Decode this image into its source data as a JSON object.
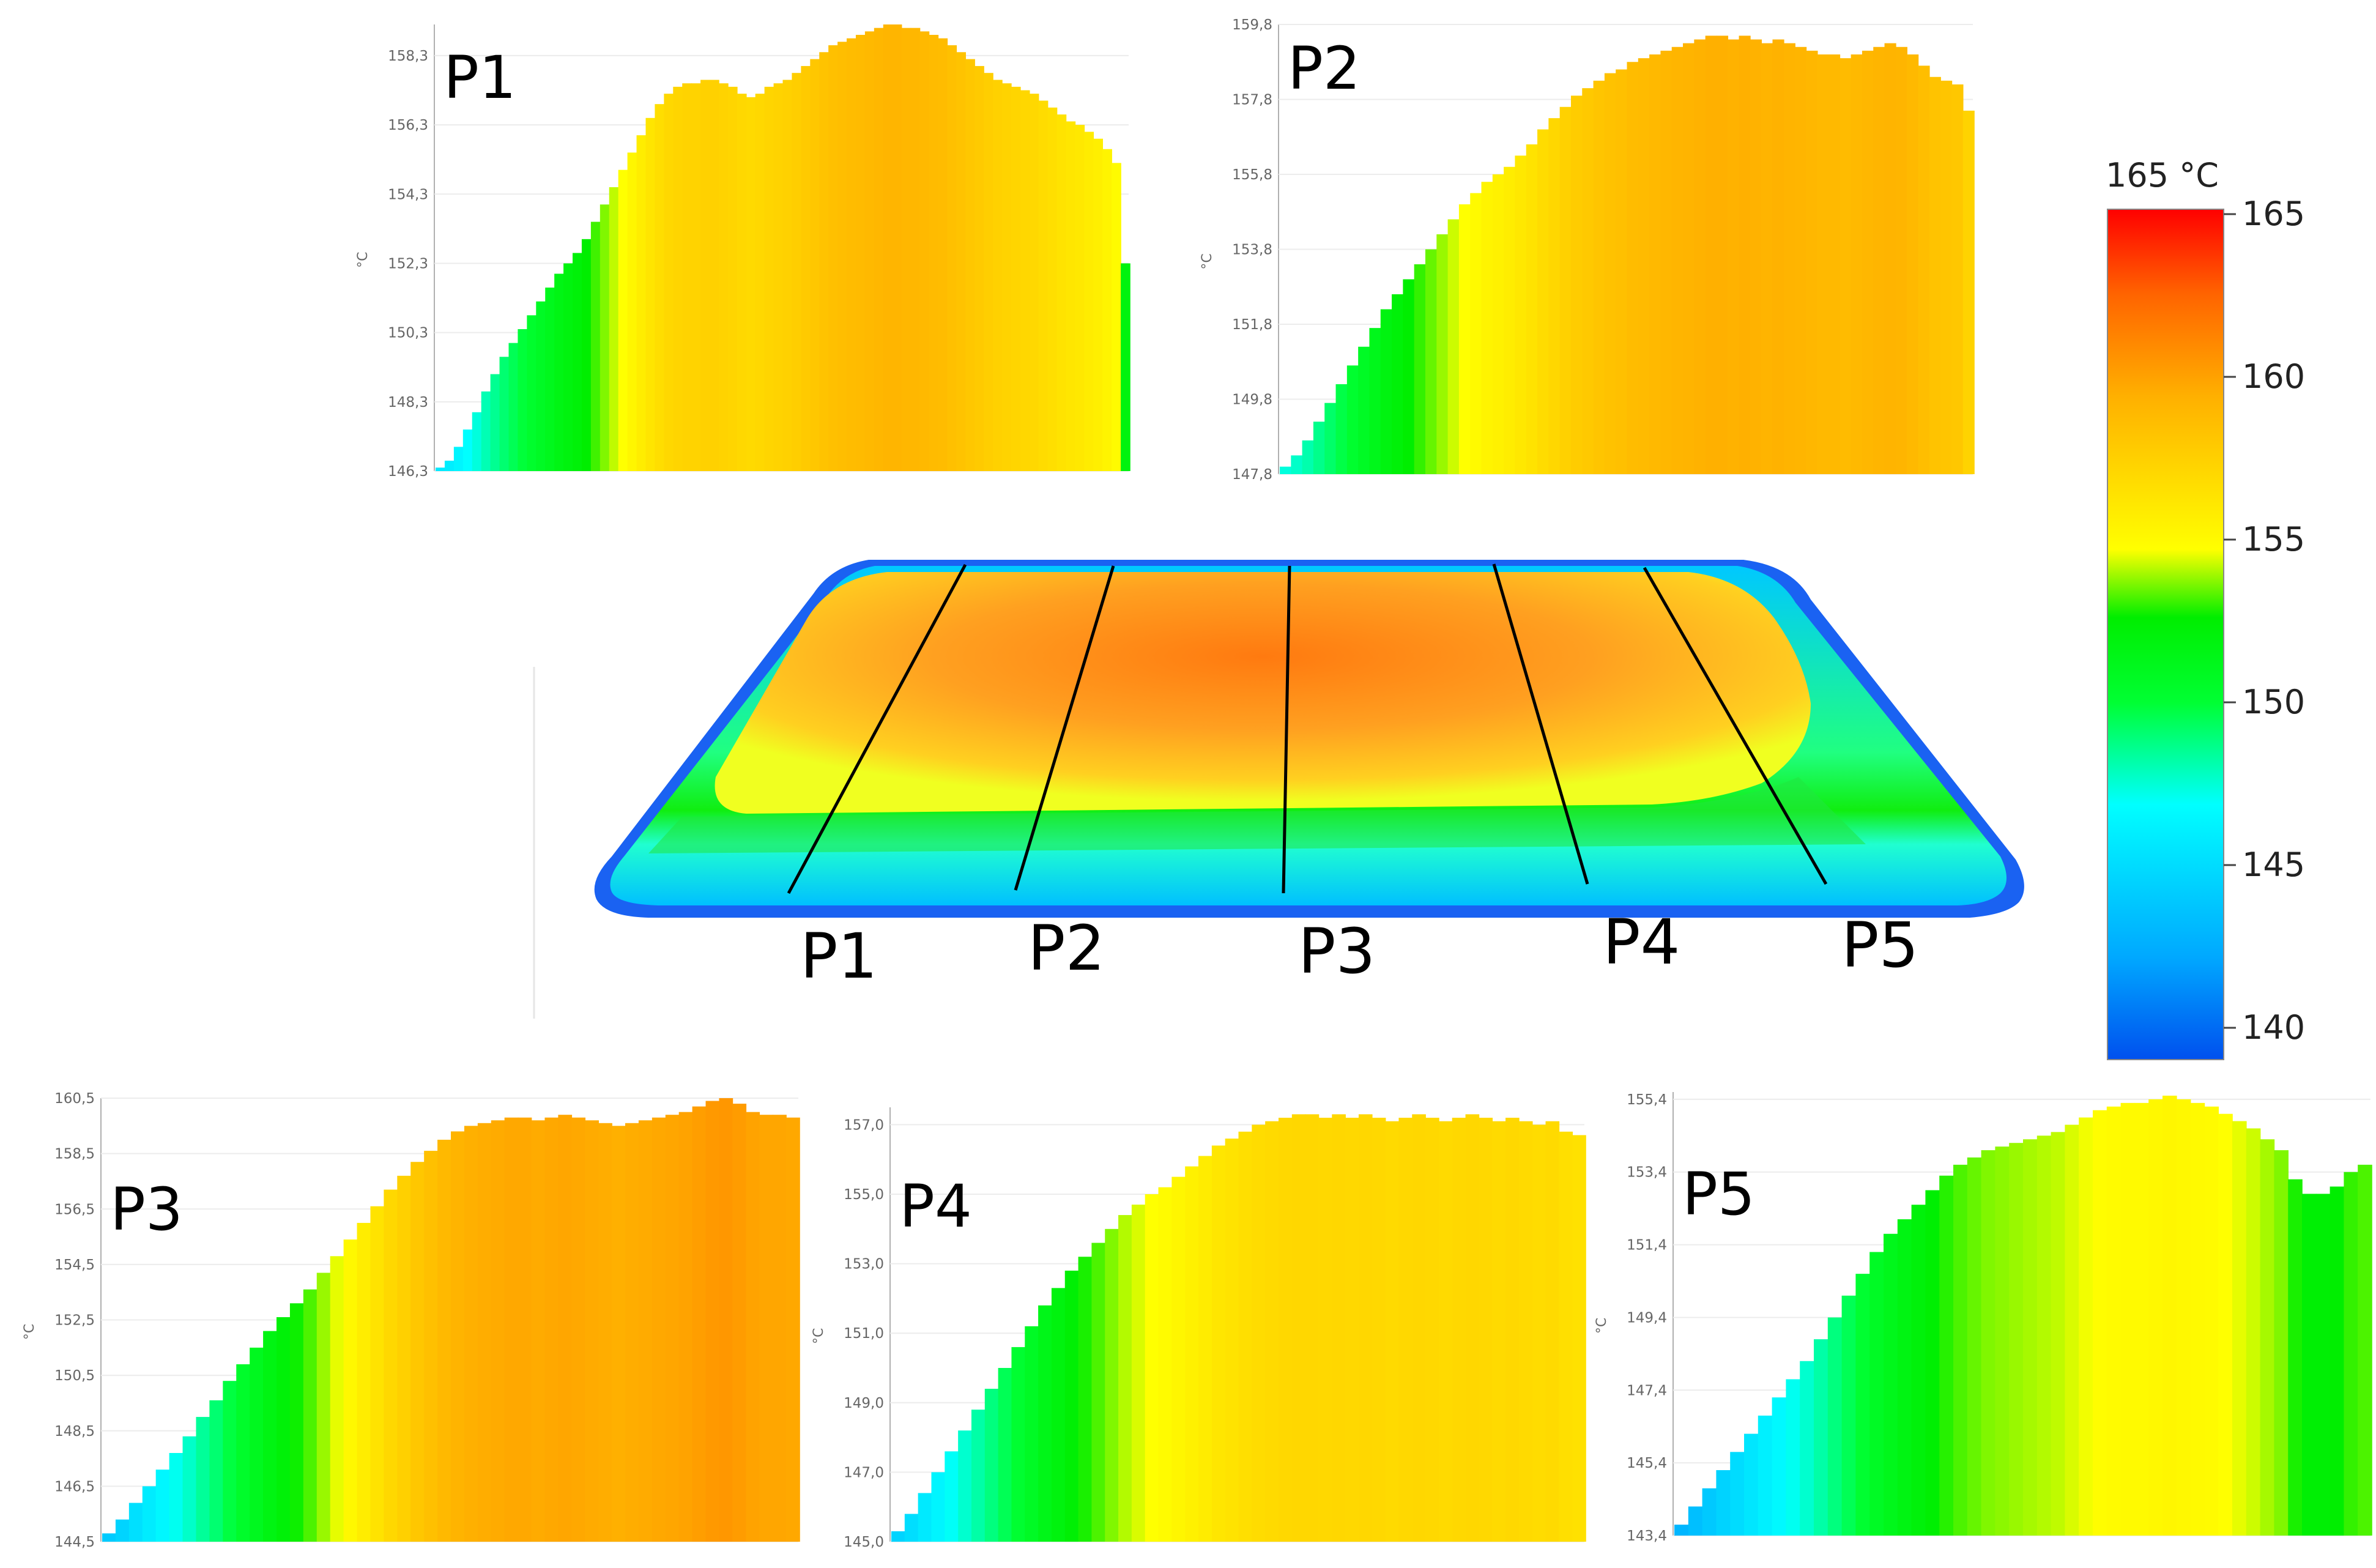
{
  "colorbar": {
    "title": "165 °C",
    "ticks": [
      "165",
      "160",
      "155",
      "150",
      "145",
      "140"
    ],
    "min": 140,
    "max": 165,
    "colors": [
      "#0044ee",
      "#00bfff",
      "#00ffff",
      "#00ff00",
      "#00dd00",
      "#ffff00",
      "#ffaa00",
      "#ff6600",
      "#ff0000"
    ]
  },
  "thermal_image": {
    "profile_labels": [
      "P1",
      "P2",
      "P3",
      "P4",
      "P5"
    ]
  },
  "chart_data": [
    {
      "type": "bar",
      "title": "P1",
      "ylabel": "°C",
      "yticks": [
        "146,3",
        "148,3",
        "150,3",
        "152,3",
        "154,3",
        "156,3",
        "158,3"
      ],
      "ylim": [
        146.3,
        159.2
      ],
      "values": [
        146.4,
        146.6,
        147.0,
        147.5,
        148.0,
        148.6,
        149.1,
        149.6,
        150.0,
        150.4,
        150.8,
        151.2,
        151.6,
        152.0,
        152.3,
        152.6,
        153.0,
        153.5,
        154.0,
        154.5,
        155.0,
        155.5,
        156.0,
        156.5,
        156.9,
        157.2,
        157.4,
        157.5,
        157.5,
        157.6,
        157.6,
        157.5,
        157.4,
        157.2,
        157.1,
        157.2,
        157.4,
        157.5,
        157.6,
        157.8,
        158.0,
        158.2,
        158.4,
        158.6,
        158.7,
        158.8,
        158.9,
        159.0,
        159.1,
        159.2,
        159.2,
        159.1,
        159.1,
        159.0,
        158.9,
        158.8,
        158.6,
        158.4,
        158.2,
        158.0,
        157.8,
        157.6,
        157.5,
        157.4,
        157.3,
        157.2,
        157.0,
        156.8,
        156.6,
        156.4,
        156.3,
        156.1,
        155.9,
        155.6,
        155.2,
        152.3
      ]
    },
    {
      "type": "bar",
      "title": "P2",
      "ylabel": "°C",
      "yticks": [
        "147,8",
        "149,8",
        "151,8",
        "153,8",
        "155,8",
        "157,8",
        "159,8"
      ],
      "ylim": [
        147.8,
        159.8
      ],
      "values": [
        148.0,
        148.3,
        148.7,
        149.2,
        149.7,
        150.2,
        150.7,
        151.2,
        151.7,
        152.2,
        152.6,
        153.0,
        153.4,
        153.8,
        154.2,
        154.6,
        155.0,
        155.3,
        155.6,
        155.8,
        156.0,
        156.3,
        156.6,
        157.0,
        157.3,
        157.6,
        157.9,
        158.1,
        158.3,
        158.5,
        158.6,
        158.8,
        158.9,
        159.0,
        159.1,
        159.2,
        159.3,
        159.4,
        159.5,
        159.5,
        159.4,
        159.5,
        159.4,
        159.3,
        159.4,
        159.3,
        159.2,
        159.1,
        159.0,
        159.0,
        158.9,
        159.0,
        159.1,
        159.2,
        159.3,
        159.2,
        159.0,
        158.7,
        158.4,
        158.3,
        158.2,
        157.5
      ]
    },
    {
      "type": "bar",
      "title": "P3",
      "ylabel": "°C",
      "yticks": [
        "144,5",
        "146,5",
        "148,5",
        "150,5",
        "152,5",
        "154,5",
        "156,5",
        "158,5",
        "160,5"
      ],
      "ylim": [
        144.5,
        160.5
      ],
      "values": [
        144.8,
        145.3,
        145.9,
        146.5,
        147.1,
        147.7,
        148.3,
        149.0,
        149.6,
        150.3,
        150.9,
        151.5,
        152.1,
        152.6,
        153.1,
        153.6,
        154.2,
        154.8,
        155.4,
        156.0,
        156.6,
        157.2,
        157.7,
        158.2,
        158.6,
        159.0,
        159.3,
        159.5,
        159.6,
        159.7,
        159.8,
        159.8,
        159.7,
        159.8,
        159.9,
        159.8,
        159.7,
        159.6,
        159.5,
        159.6,
        159.7,
        159.8,
        159.9,
        160.0,
        160.2,
        160.4,
        160.5,
        160.3,
        160.0,
        159.9,
        159.9,
        159.8
      ]
    },
    {
      "type": "bar",
      "title": "P4",
      "ylabel": "°C",
      "yticks": [
        "145,0",
        "147,0",
        "149,0",
        "151,0",
        "153,0",
        "155,0",
        "157,0"
      ],
      "ylim": [
        145.0,
        157.5
      ],
      "values": [
        145.3,
        145.8,
        146.4,
        147.0,
        147.6,
        148.2,
        148.8,
        149.4,
        150.0,
        150.6,
        151.2,
        151.8,
        152.3,
        152.8,
        153.2,
        153.6,
        154.0,
        154.4,
        154.7,
        155.0,
        155.2,
        155.5,
        155.8,
        156.1,
        156.4,
        156.6,
        156.8,
        157.0,
        157.1,
        157.2,
        157.3,
        157.3,
        157.2,
        157.3,
        157.2,
        157.3,
        157.2,
        157.1,
        157.2,
        157.3,
        157.2,
        157.1,
        157.2,
        157.3,
        157.2,
        157.1,
        157.2,
        157.1,
        157.0,
        157.1,
        156.8,
        156.7
      ]
    },
    {
      "type": "bar",
      "title": "P5",
      "ylabel": "°C",
      "yticks": [
        "143,4",
        "145,4",
        "147,4",
        "149,4",
        "151,4",
        "153,4",
        "155,4"
      ],
      "ylim": [
        143.4,
        155.6
      ],
      "values": [
        143.7,
        144.2,
        144.7,
        145.2,
        145.7,
        146.2,
        146.7,
        147.2,
        147.7,
        148.2,
        148.8,
        149.4,
        150.0,
        150.6,
        151.2,
        151.7,
        152.1,
        152.5,
        152.9,
        153.3,
        153.6,
        153.8,
        154.0,
        154.1,
        154.2,
        154.3,
        154.4,
        154.5,
        154.7,
        154.9,
        155.1,
        155.2,
        155.3,
        155.3,
        155.4,
        155.5,
        155.4,
        155.3,
        155.2,
        155.0,
        154.8,
        154.6,
        154.3,
        154.0,
        153.2,
        152.8,
        152.8,
        153.0,
        153.4,
        153.6
      ]
    }
  ]
}
